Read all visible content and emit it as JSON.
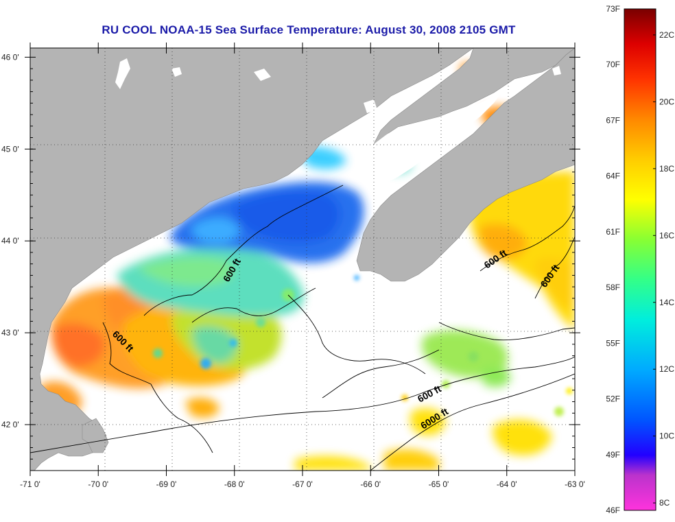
{
  "title": "RU COOL  NOAA-15  Sea Surface Temperature:  August 30, 2008 2105 GMT",
  "map": {
    "lon_labels": [
      "-71 0'",
      "-70 0'",
      "-69 0'",
      "-68 0'",
      "-67 0'",
      "-66 0'",
      "-65 0'",
      "-64 0'",
      "-63 0'"
    ],
    "lat_labels": [
      "46 0'",
      "45 0'",
      "44 0'",
      "43 0'",
      "42 0'"
    ],
    "lon_values": [
      -71,
      -70,
      -69,
      -68,
      -67,
      -66,
      -65,
      -64,
      -63
    ],
    "lat_values": [
      46,
      45,
      44,
      43,
      42
    ],
    "lon_range": [
      -71,
      -63
    ],
    "lat_range": [
      41.5,
      46.1
    ],
    "land_color": "#b4b4b4",
    "grid": "dotted"
  },
  "contour_labels": [
    "600 ft",
    "600 ft",
    "600 ft",
    "600 ft",
    "600 ft",
    "6000 ft"
  ],
  "colorbar": {
    "f_labels": [
      "73F",
      "70F",
      "67F",
      "64F",
      "61F",
      "58F",
      "55F",
      "52F",
      "49F",
      "46F"
    ],
    "c_labels": [
      "22C",
      "20C",
      "18C",
      "16C",
      "14C",
      "12C",
      "10C",
      "8C"
    ],
    "colors": [
      "#ff33cc",
      "#9933cc",
      "#0000ff",
      "#0066ff",
      "#00bbff",
      "#00ffee",
      "#44ff88",
      "#99ff33",
      "#ffff00",
      "#ffcc00",
      "#ff8800",
      "#ff3300",
      "#cc0000",
      "#800000"
    ]
  }
}
